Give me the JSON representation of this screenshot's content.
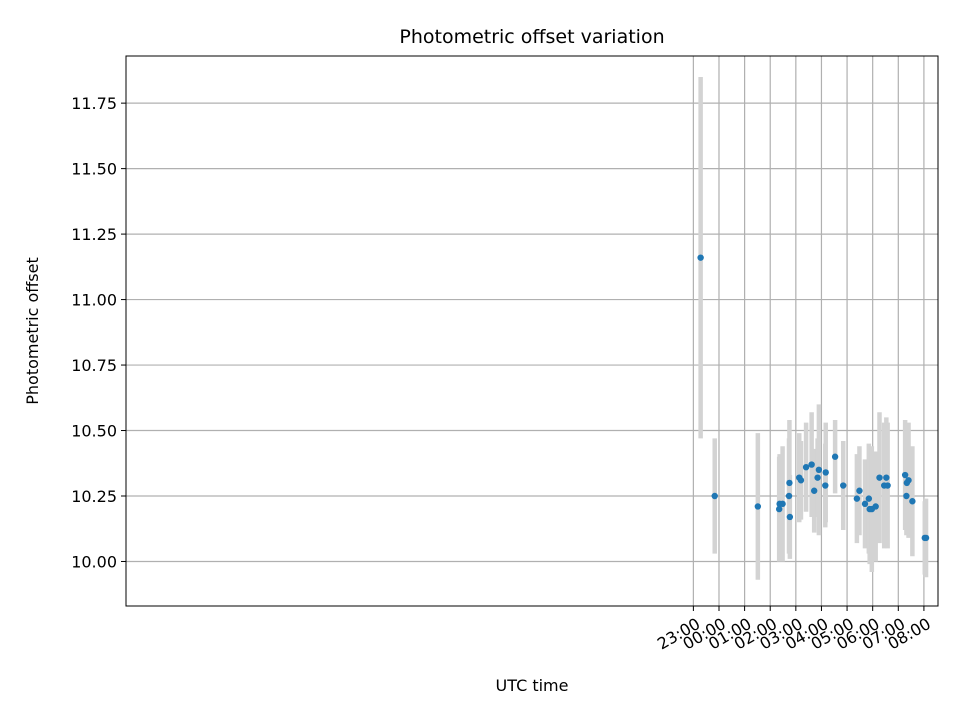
{
  "chart_data": {
    "type": "scatter",
    "title": "Photometric offset variation",
    "xlabel": "UTC time",
    "ylabel": "Photometric offset",
    "x_ticks": [
      "23:00",
      "00:00",
      "01:00",
      "02:00",
      "03:00",
      "04:00",
      "05:00",
      "06:00",
      "07:00",
      "08:00"
    ],
    "y_ticks": [
      "10.00",
      "10.25",
      "10.50",
      "10.75",
      "11.00",
      "11.25",
      "11.50",
      "11.75"
    ],
    "x_unit": "UTC hours relative to 00:00",
    "xlim": [
      -23.15,
      8.55
    ],
    "ylim": [
      9.83,
      11.93
    ],
    "grid": true,
    "point_color": "#1f77b4",
    "errorbar_color": "#d3d3d3",
    "points": [
      {
        "x": "23:17",
        "y": 11.16,
        "err": 0.69
      },
      {
        "x": "23:50",
        "y": 10.25,
        "err": 0.22
      },
      {
        "x": "01:31",
        "y": 10.21,
        "err": 0.28
      },
      {
        "x": "02:21",
        "y": 10.2,
        "err": 0.2
      },
      {
        "x": "02:22",
        "y": 10.22,
        "err": 0.19
      },
      {
        "x": "02:29",
        "y": 10.22,
        "err": 0.22
      },
      {
        "x": "02:44",
        "y": 10.25,
        "err": 0.22
      },
      {
        "x": "02:45",
        "y": 10.3,
        "err": 0.24
      },
      {
        "x": "02:46",
        "y": 10.17,
        "err": 0.16
      },
      {
        "x": "03:08",
        "y": 10.32,
        "err": 0.17
      },
      {
        "x": "03:12",
        "y": 10.31,
        "err": 0.15
      },
      {
        "x": "03:24",
        "y": 10.36,
        "err": 0.17
      },
      {
        "x": "03:37",
        "y": 10.37,
        "err": 0.2
      },
      {
        "x": "03:43",
        "y": 10.27,
        "err": 0.16
      },
      {
        "x": "03:51",
        "y": 10.32,
        "err": 0.15
      },
      {
        "x": "03:54",
        "y": 10.35,
        "err": 0.25
      },
      {
        "x": "04:09",
        "y": 10.29,
        "err": 0.16
      },
      {
        "x": "04:10",
        "y": 10.34,
        "err": 0.19
      },
      {
        "x": "04:32",
        "y": 10.4,
        "err": 0.14
      },
      {
        "x": "04:51",
        "y": 10.29,
        "err": 0.17
      },
      {
        "x": "05:23",
        "y": 10.24,
        "err": 0.17
      },
      {
        "x": "05:29",
        "y": 10.27,
        "err": 0.17
      },
      {
        "x": "05:42",
        "y": 10.22,
        "err": 0.17
      },
      {
        "x": "05:51",
        "y": 10.24,
        "err": 0.21
      },
      {
        "x": "05:53",
        "y": 10.2,
        "err": 0.21
      },
      {
        "x": "05:58",
        "y": 10.2,
        "err": 0.24
      },
      {
        "x": "06:07",
        "y": 10.21,
        "err": 0.21
      },
      {
        "x": "06:16",
        "y": 10.32,
        "err": 0.25
      },
      {
        "x": "06:27",
        "y": 10.29,
        "err": 0.24
      },
      {
        "x": "06:32",
        "y": 10.32,
        "err": 0.23
      },
      {
        "x": "06:35",
        "y": 10.29,
        "err": 0.24
      },
      {
        "x": "07:16",
        "y": 10.33,
        "err": 0.21
      },
      {
        "x": "07:19",
        "y": 10.25,
        "err": 0.15
      },
      {
        "x": "07:20",
        "y": 10.3,
        "err": 0.18
      },
      {
        "x": "07:24",
        "y": 10.31,
        "err": 0.22
      },
      {
        "x": "07:33",
        "y": 10.23,
        "err": 0.21
      },
      {
        "x": "08:02",
        "y": 10.09,
        "err": 0.14
      },
      {
        "x": "08:05",
        "y": 10.09,
        "err": 0.15
      }
    ]
  }
}
